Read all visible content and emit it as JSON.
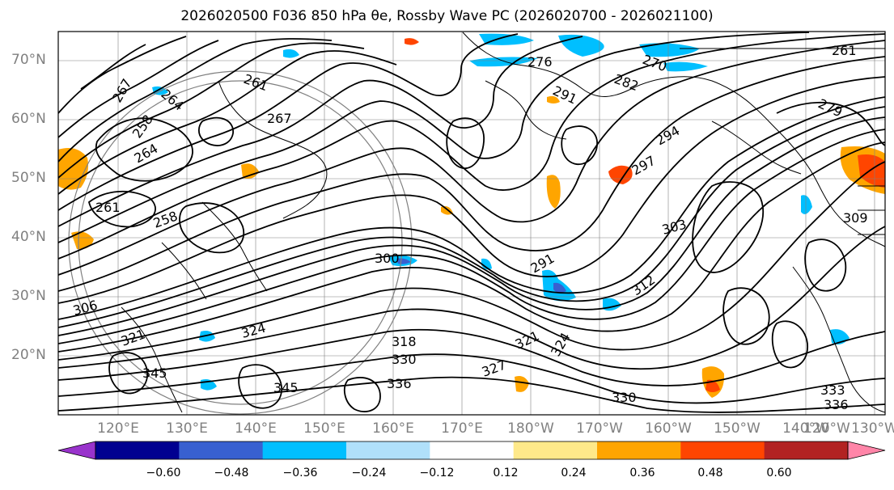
{
  "title": "2026020500 F036 850 hPa θe, Rossby Wave PC (2026020700 - 2026021100)",
  "map": {
    "lat_labels": [
      "70°N",
      "60°N",
      "50°N",
      "40°N",
      "30°N",
      "20°N"
    ],
    "lon_labels": [
      "120°E",
      "130°E",
      "140°E",
      "150°E",
      "160°E",
      "170°E",
      "180°W",
      "170°W",
      "160°W",
      "150°W",
      "140°W",
      "130°W",
      "120°W"
    ],
    "contour_labels": [
      "276",
      "270",
      "261",
      "267",
      "261",
      "264",
      "267",
      "258",
      "264",
      "261",
      "258",
      "282",
      "291",
      "279",
      "294",
      "297",
      "303",
      "300",
      "291",
      "309",
      "312",
      "306",
      "321",
      "324",
      "318",
      "330",
      "327",
      "321",
      "345",
      "345",
      "336",
      "330",
      "324",
      "333",
      "336"
    ],
    "colors": {
      "coast": "#000000",
      "grid": "#808080",
      "contour": "#000000"
    }
  },
  "colorbar": {
    "levels": [
      "−0.60",
      "−0.48",
      "−0.36",
      "−0.24",
      "−0.12",
      "0.12",
      "0.24",
      "0.36",
      "0.48",
      "0.60"
    ],
    "colors": [
      "#9933cc",
      "#000090",
      "#3860d0",
      "#00bfff",
      "#b0e0fa",
      "#ffffff",
      "#ffe98a",
      "#ffa500",
      "#ff4500",
      "#b22222",
      "#ff85a8"
    ]
  }
}
